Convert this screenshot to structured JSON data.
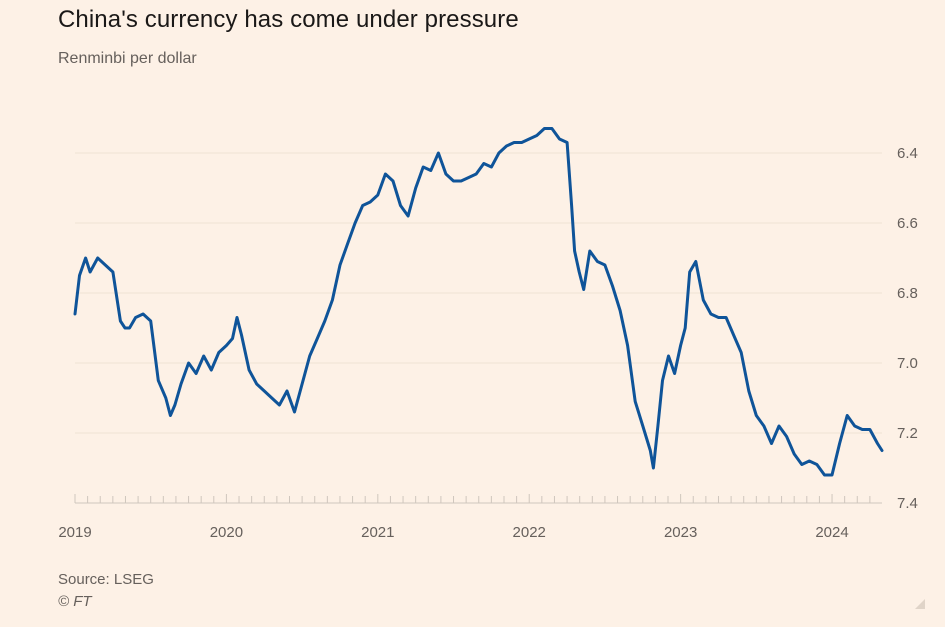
{
  "title": "China's currency has come under pressure",
  "subtitle": "Renminbi per dollar",
  "source": "Source: LSEG",
  "copyright": "© FT",
  "colors": {
    "background": "#fdf1e6",
    "line": "#0f5499",
    "grid": "#f0e2d4",
    "axis": "#cfc6bd",
    "text": "#66605c"
  },
  "chart_data": {
    "type": "line",
    "title": "China's currency has come under pressure",
    "ylabel": "Renminbi per dollar",
    "xlabel": "",
    "y_inverted": true,
    "ylim": [
      6.32,
      7.4
    ],
    "yticks": [
      6.4,
      6.6,
      6.8,
      7.0,
      7.2,
      7.4
    ],
    "ytick_labels": [
      "6.4",
      "6.6",
      "6.8",
      "7.0",
      "7.2",
      "7.4"
    ],
    "xlim": [
      2019.0,
      2024.33
    ],
    "xticks": [
      2019,
      2020,
      2021,
      2022,
      2023,
      2024
    ],
    "xtick_labels": [
      "2019",
      "2020",
      "2021",
      "2022",
      "2023",
      "2024"
    ],
    "grid": true,
    "series": [
      {
        "name": "Renminbi per dollar",
        "x": [
          2019.0,
          2019.03,
          2019.07,
          2019.1,
          2019.15,
          2019.2,
          2019.25,
          2019.3,
          2019.33,
          2019.36,
          2019.4,
          2019.45,
          2019.5,
          2019.55,
          2019.6,
          2019.63,
          2019.66,
          2019.7,
          2019.75,
          2019.8,
          2019.85,
          2019.9,
          2019.95,
          2020.0,
          2020.04,
          2020.07,
          2020.1,
          2020.15,
          2020.2,
          2020.25,
          2020.3,
          2020.35,
          2020.4,
          2020.45,
          2020.5,
          2020.55,
          2020.6,
          2020.65,
          2020.7,
          2020.75,
          2020.8,
          2020.85,
          2020.9,
          2020.95,
          2021.0,
          2021.05,
          2021.1,
          2021.15,
          2021.2,
          2021.25,
          2021.3,
          2021.35,
          2021.4,
          2021.45,
          2021.5,
          2021.55,
          2021.6,
          2021.65,
          2021.7,
          2021.75,
          2021.8,
          2021.85,
          2021.9,
          2021.95,
          2022.0,
          2022.05,
          2022.1,
          2022.15,
          2022.2,
          2022.25,
          2022.28,
          2022.3,
          2022.33,
          2022.36,
          2022.4,
          2022.45,
          2022.5,
          2022.55,
          2022.6,
          2022.65,
          2022.7,
          2022.75,
          2022.8,
          2022.82,
          2022.85,
          2022.88,
          2022.92,
          2022.96,
          2023.0,
          2023.03,
          2023.06,
          2023.1,
          2023.15,
          2023.2,
          2023.25,
          2023.3,
          2023.35,
          2023.4,
          2023.45,
          2023.5,
          2023.55,
          2023.6,
          2023.65,
          2023.7,
          2023.75,
          2023.8,
          2023.85,
          2023.9,
          2023.95,
          2024.0,
          2024.05,
          2024.1,
          2024.15,
          2024.2,
          2024.25,
          2024.3,
          2024.33
        ],
        "values": [
          6.86,
          6.75,
          6.7,
          6.74,
          6.7,
          6.72,
          6.74,
          6.88,
          6.9,
          6.9,
          6.87,
          6.86,
          6.88,
          7.05,
          7.1,
          7.15,
          7.12,
          7.06,
          7.0,
          7.03,
          6.98,
          7.02,
          6.97,
          6.95,
          6.93,
          6.87,
          6.92,
          7.02,
          7.06,
          7.08,
          7.1,
          7.12,
          7.08,
          7.14,
          7.06,
          6.98,
          6.93,
          6.88,
          6.82,
          6.72,
          6.66,
          6.6,
          6.55,
          6.54,
          6.52,
          6.46,
          6.48,
          6.55,
          6.58,
          6.5,
          6.44,
          6.45,
          6.4,
          6.46,
          6.48,
          6.48,
          6.47,
          6.46,
          6.43,
          6.44,
          6.4,
          6.38,
          6.37,
          6.37,
          6.36,
          6.35,
          6.33,
          6.33,
          6.36,
          6.37,
          6.55,
          6.68,
          6.74,
          6.79,
          6.68,
          6.71,
          6.72,
          6.78,
          6.85,
          6.95,
          7.11,
          7.18,
          7.25,
          7.3,
          7.18,
          7.05,
          6.98,
          7.03,
          6.95,
          6.9,
          6.74,
          6.71,
          6.82,
          6.86,
          6.87,
          6.87,
          6.92,
          6.97,
          7.08,
          7.15,
          7.18,
          7.23,
          7.18,
          7.21,
          7.26,
          7.29,
          7.28,
          7.29,
          7.32,
          7.32,
          7.23,
          7.15,
          7.18,
          7.19,
          7.19,
          7.23,
          7.25
        ]
      }
    ]
  }
}
